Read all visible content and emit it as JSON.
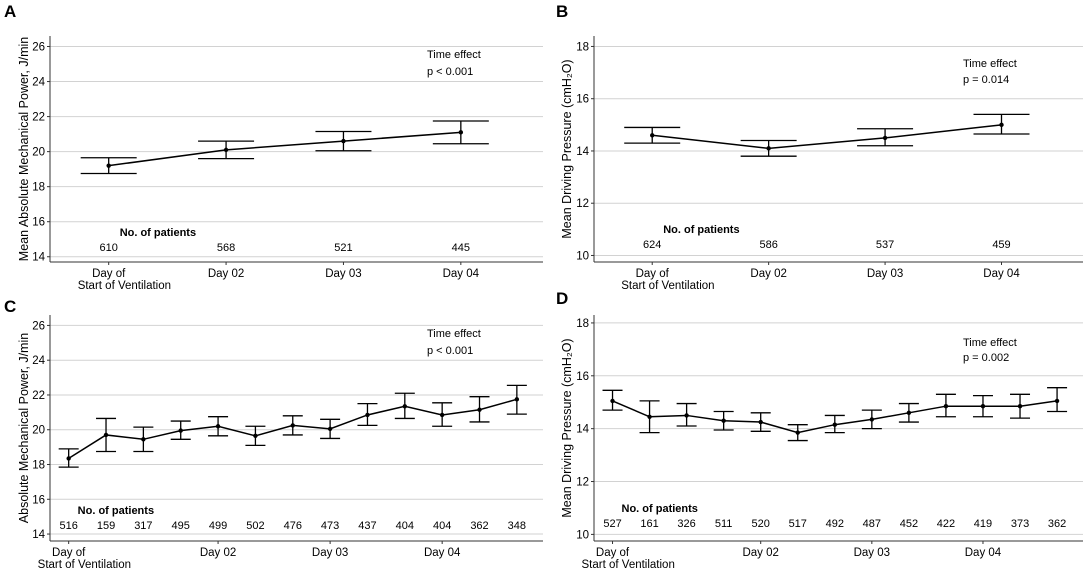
{
  "chart_data": [
    {
      "panel": "A",
      "type": "line",
      "ylabel": "Mean Absolute Mechanical Power, J/min",
      "xlabel": "",
      "ylim": [
        13.7,
        26.6
      ],
      "yticks": [
        14,
        16,
        18,
        20,
        22,
        24,
        26
      ],
      "categories": [
        "Day of\nStart of Ventilation",
        "Day 02",
        "Day 03",
        "Day 04"
      ],
      "x": [
        1,
        2,
        3,
        4
      ],
      "xlim": [
        0.5,
        4.7
      ],
      "tick_positions": [
        1,
        2,
        3,
        4
      ],
      "series": [
        {
          "name": "mean",
          "values": [
            19.2,
            20.1,
            20.6,
            21.1
          ],
          "lower": [
            18.75,
            19.6,
            20.05,
            20.45
          ],
          "upper": [
            19.65,
            20.6,
            21.15,
            21.75
          ]
        }
      ],
      "annotation_title": "Time effect",
      "annotation_p": "p < 0.001",
      "patients_label": "No. of patients",
      "patients": [
        "610",
        "568",
        "521",
        "445"
      ]
    },
    {
      "panel": "B",
      "type": "line",
      "ylabel": "Mean Driving Pressure (cmH₂O)",
      "xlabel": "",
      "ylim": [
        9.75,
        18.4
      ],
      "yticks": [
        10,
        12,
        14,
        16,
        18
      ],
      "categories": [
        "Day of\nStart of Ventilation",
        "Day 02",
        "Day 03",
        "Day 04"
      ],
      "x": [
        1,
        2,
        3,
        4
      ],
      "xlim": [
        0.5,
        4.7
      ],
      "tick_positions": [
        1,
        2,
        3,
        4
      ],
      "series": [
        {
          "name": "mean",
          "values": [
            14.6,
            14.1,
            14.5,
            15.0
          ],
          "lower": [
            14.3,
            13.8,
            14.2,
            14.65
          ],
          "upper": [
            14.9,
            14.4,
            14.85,
            15.4
          ]
        }
      ],
      "annotation_title": "Time effect",
      "annotation_p": "p = 0.014",
      "patients_label": "No. of patients",
      "patients": [
        "624",
        "586",
        "537",
        "459"
      ]
    },
    {
      "panel": "C",
      "type": "line",
      "ylabel": "Absolute Mechanical Power, J/min",
      "xlabel": "",
      "ylim": [
        13.6,
        26.6
      ],
      "yticks": [
        14,
        16,
        18,
        20,
        22,
        24,
        26
      ],
      "categories": [
        "Day of\nStart of Ventilation",
        "Day 02",
        "Day 03",
        "Day 04"
      ],
      "x": [
        1,
        2,
        3,
        4,
        5,
        6,
        7,
        8,
        9,
        10,
        11,
        12,
        13
      ],
      "xlim": [
        0.5,
        13.7
      ],
      "tick_positions": [
        1,
        5,
        8,
        11
      ],
      "series": [
        {
          "name": "mean",
          "values": [
            18.35,
            19.7,
            19.45,
            19.95,
            20.2,
            19.65,
            20.25,
            20.05,
            20.85,
            21.35,
            20.85,
            21.15,
            21.75
          ],
          "lower": [
            17.85,
            18.75,
            18.75,
            19.45,
            19.65,
            19.1,
            19.7,
            19.5,
            20.25,
            20.65,
            20.2,
            20.45,
            20.9
          ],
          "upper": [
            18.9,
            20.65,
            20.15,
            20.5,
            20.75,
            20.2,
            20.8,
            20.6,
            21.5,
            22.1,
            21.55,
            21.9,
            22.55
          ]
        }
      ],
      "annotation_title": "Time effect",
      "annotation_p": "p < 0.001",
      "patients_label": "No. of patients",
      "patients": [
        "516",
        "159",
        "317",
        "495",
        "499",
        "502",
        "476",
        "473",
        "437",
        "404",
        "404",
        "362",
        "348"
      ]
    },
    {
      "panel": "D",
      "type": "line",
      "ylabel": "Mean Driving Pressure (cmH₂O)",
      "xlabel": "",
      "ylim": [
        9.75,
        18.3
      ],
      "yticks": [
        10,
        12,
        14,
        16,
        18
      ],
      "categories": [
        "Day of\nStart of Ventilation",
        "Day 02",
        "Day 03",
        "Day 04"
      ],
      "x": [
        1,
        2,
        3,
        4,
        5,
        6,
        7,
        8,
        9,
        10,
        11,
        12,
        13
      ],
      "xlim": [
        0.5,
        13.7
      ],
      "tick_positions": [
        1,
        5,
        8,
        11
      ],
      "series": [
        {
          "name": "mean",
          "values": [
            15.05,
            14.45,
            14.5,
            14.3,
            14.25,
            13.85,
            14.15,
            14.35,
            14.6,
            14.85,
            14.85,
            14.85,
            15.05
          ],
          "lower": [
            14.7,
            13.85,
            14.1,
            13.95,
            13.9,
            13.55,
            13.85,
            14.0,
            14.25,
            14.45,
            14.45,
            14.4,
            14.65
          ],
          "upper": [
            15.45,
            15.05,
            14.95,
            14.65,
            14.6,
            14.15,
            14.5,
            14.7,
            14.95,
            15.3,
            15.25,
            15.3,
            15.55
          ]
        }
      ],
      "annotation_title": "Time effect",
      "annotation_p": "p = 0.002",
      "patients_label": "No. of patients",
      "patients": [
        "527",
        "161",
        "326",
        "511",
        "520",
        "517",
        "492",
        "487",
        "452",
        "422",
        "419",
        "373",
        "362"
      ]
    }
  ]
}
